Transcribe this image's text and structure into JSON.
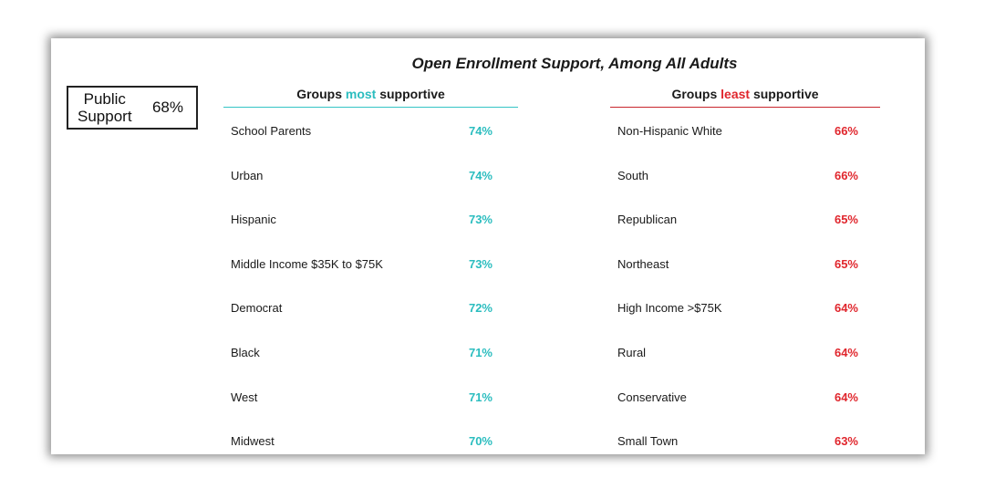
{
  "title": "Open Enrollment Support, Among All Adults",
  "public_support": {
    "label": "Public\nSupport",
    "value": "68%"
  },
  "colors": {
    "most": "#2bbdbf",
    "least": "#e0262d"
  },
  "most_header": {
    "prefix": "Groups ",
    "highlight": "most",
    "suffix": " supportive"
  },
  "least_header": {
    "prefix": "Groups ",
    "highlight": "least",
    "suffix": " supportive"
  },
  "chart_data": {
    "type": "table",
    "title": "Open Enrollment Support, Among All Adults",
    "overall": {
      "label": "Public Support",
      "value": 68
    },
    "groups_most_supportive": [
      {
        "group": "School Parents",
        "value": 74,
        "display": "74%"
      },
      {
        "group": "Urban",
        "value": 74,
        "display": "74%"
      },
      {
        "group": "Hispanic",
        "value": 73,
        "display": "73%"
      },
      {
        "group": "Middle Income $35K to $75K",
        "value": 73,
        "display": "73%"
      },
      {
        "group": "Democrat",
        "value": 72,
        "display": "72%"
      },
      {
        "group": "Black",
        "value": 71,
        "display": "71%"
      },
      {
        "group": "West",
        "value": 71,
        "display": "71%"
      },
      {
        "group": "Midwest",
        "value": 70,
        "display": "70%"
      }
    ],
    "groups_least_supportive": [
      {
        "group": "Non-Hispanic White",
        "value": 66,
        "display": "66%"
      },
      {
        "group": "South",
        "value": 66,
        "display": "66%"
      },
      {
        "group": "Republican",
        "value": 65,
        "display": "65%"
      },
      {
        "group": "Northeast",
        "value": 65,
        "display": "65%"
      },
      {
        "group": "High Income >$75K",
        "value": 64,
        "display": "64%"
      },
      {
        "group": "Rural",
        "value": 64,
        "display": "64%"
      },
      {
        "group": "Conservative",
        "value": 64,
        "display": "64%"
      },
      {
        "group": "Small Town",
        "value": 63,
        "display": "63%"
      }
    ]
  }
}
